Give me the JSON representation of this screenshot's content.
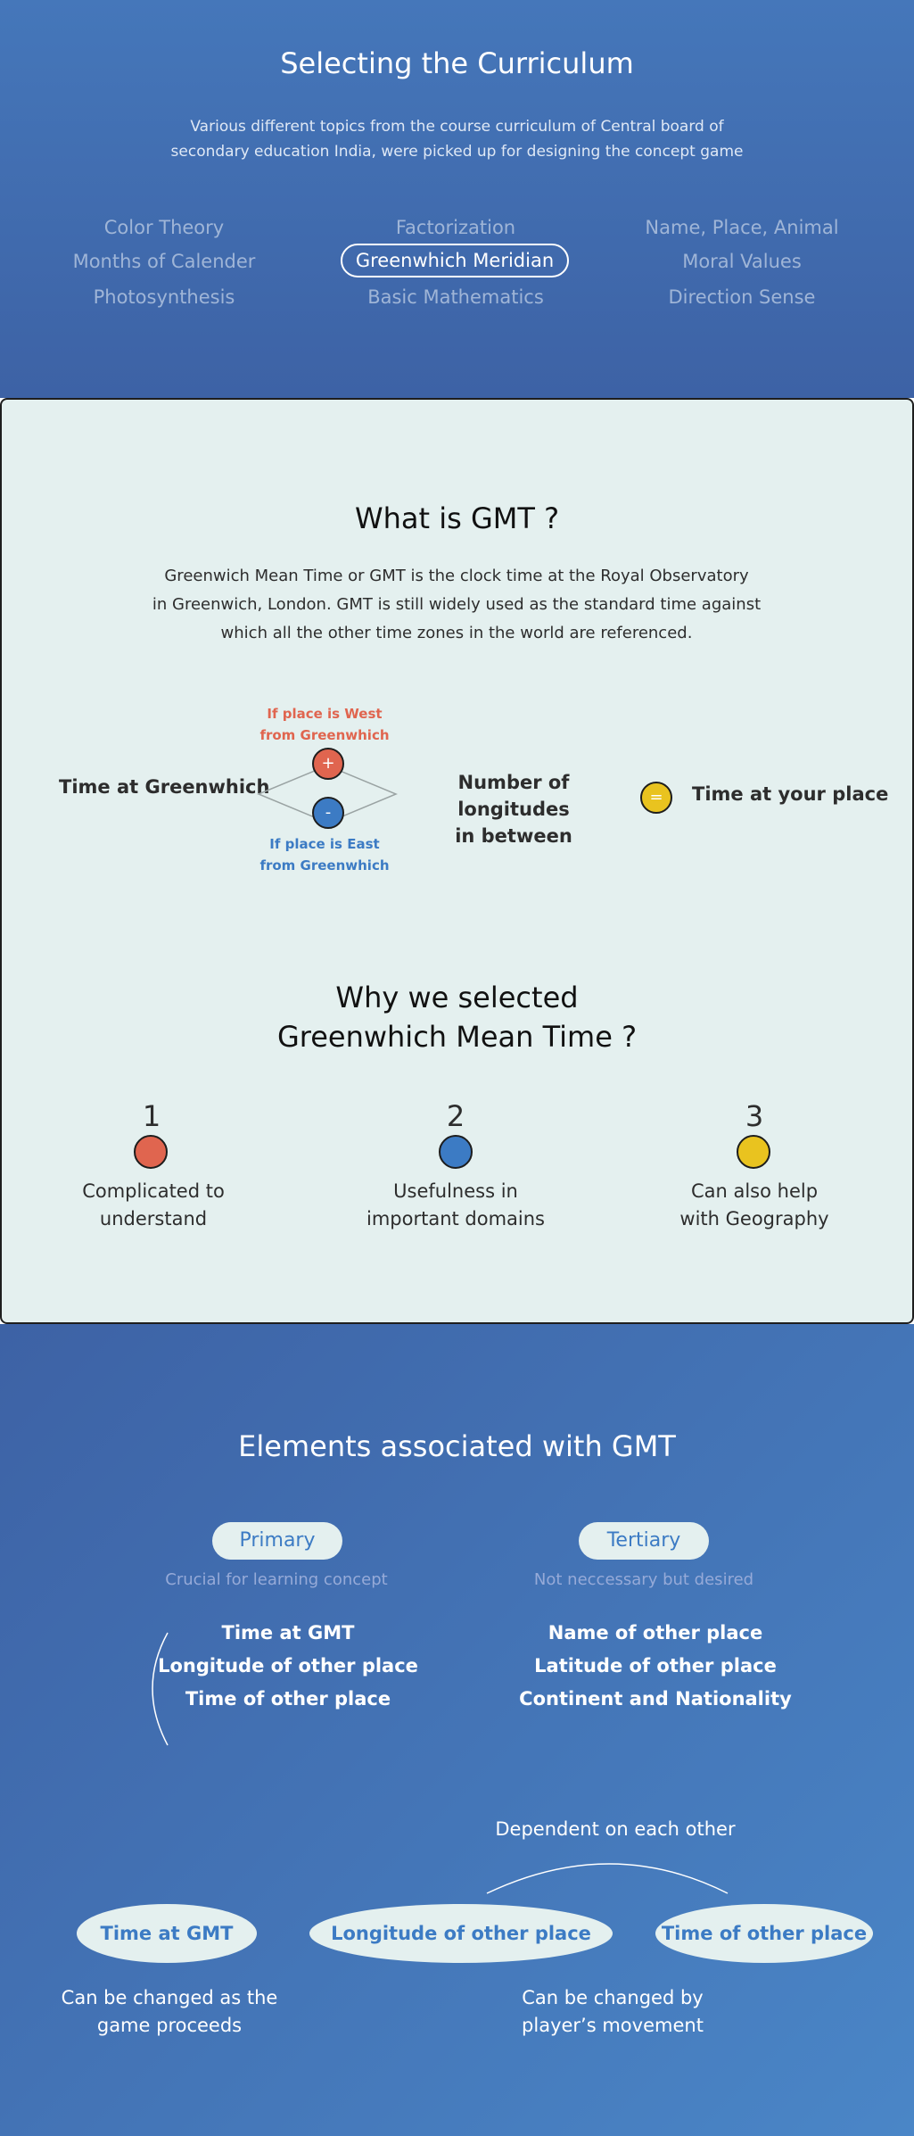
{
  "curriculum": {
    "title": "Selecting the Curriculum",
    "intro_line1": "Various different topics from the course curriculum of Central board of",
    "intro_line2": "secondary education India, were picked up for designing the concept game",
    "topics": [
      [
        "Color Theory",
        "Factorization",
        "Name, Place, Animal"
      ],
      [
        "Months of Calender",
        "Greenwhich Meridian",
        "Moral Values"
      ],
      [
        "Photosynthesis",
        "Basic Mathematics",
        "Direction Sense"
      ]
    ]
  },
  "gmt": {
    "title": "What is GMT ?",
    "desc_line1": "Greenwich Mean Time or GMT is the clock time at the Royal Observatory",
    "desc_line2": "in Greenwich, London. GMT is still widely used as the standard time against",
    "desc_line3": "which all the other time zones in the world are referenced.",
    "formula": {
      "left": "Time at Greenwhich",
      "west_line1": "If place is West",
      "west_line2": "from Greenwhich",
      "plus": "+",
      "minus": "-",
      "east_line1": "If place is East",
      "east_line2": "from Greenwhich",
      "middle_line1": "Number of longitudes",
      "middle_line2": "in between",
      "equals": "=",
      "right": "Time at your place"
    },
    "colors": {
      "red": "#e0654f",
      "blue": "#3c7bc4",
      "yellow": "#e9c31f"
    }
  },
  "why": {
    "title_line1": "Why we selected",
    "title_line2": "Greenwhich Mean Time ?",
    "reasons": [
      {
        "num": "1",
        "line1": "Complicated to",
        "line2": "understand"
      },
      {
        "num": "2",
        "line1": "Usefulness in",
        "line2": "important domains"
      },
      {
        "num": "3",
        "line1": "Can also help",
        "line2": "with Geography"
      }
    ]
  },
  "elements": {
    "title": "Elements associated with GMT",
    "primary": {
      "label": "Primary",
      "sub": "Crucial for learning concept",
      "items": [
        "Time at GMT",
        "Longitude of other place",
        "Time of other place"
      ]
    },
    "tertiary": {
      "label": "Tertiary",
      "sub": "Not neccessary but desired",
      "items": [
        "Name of other place",
        "Latitude of other place",
        "Continent and Nationality"
      ]
    },
    "dependent": "Dependent on each other",
    "ovals": [
      "Time at GMT",
      "Longitude of other place",
      "Time of other place"
    ],
    "note_left_line1": "Can be changed as the",
    "note_left_line2": "game proceeds",
    "note_right_line1": "Can be changed by",
    "note_right_line2": "player’s movement"
  }
}
